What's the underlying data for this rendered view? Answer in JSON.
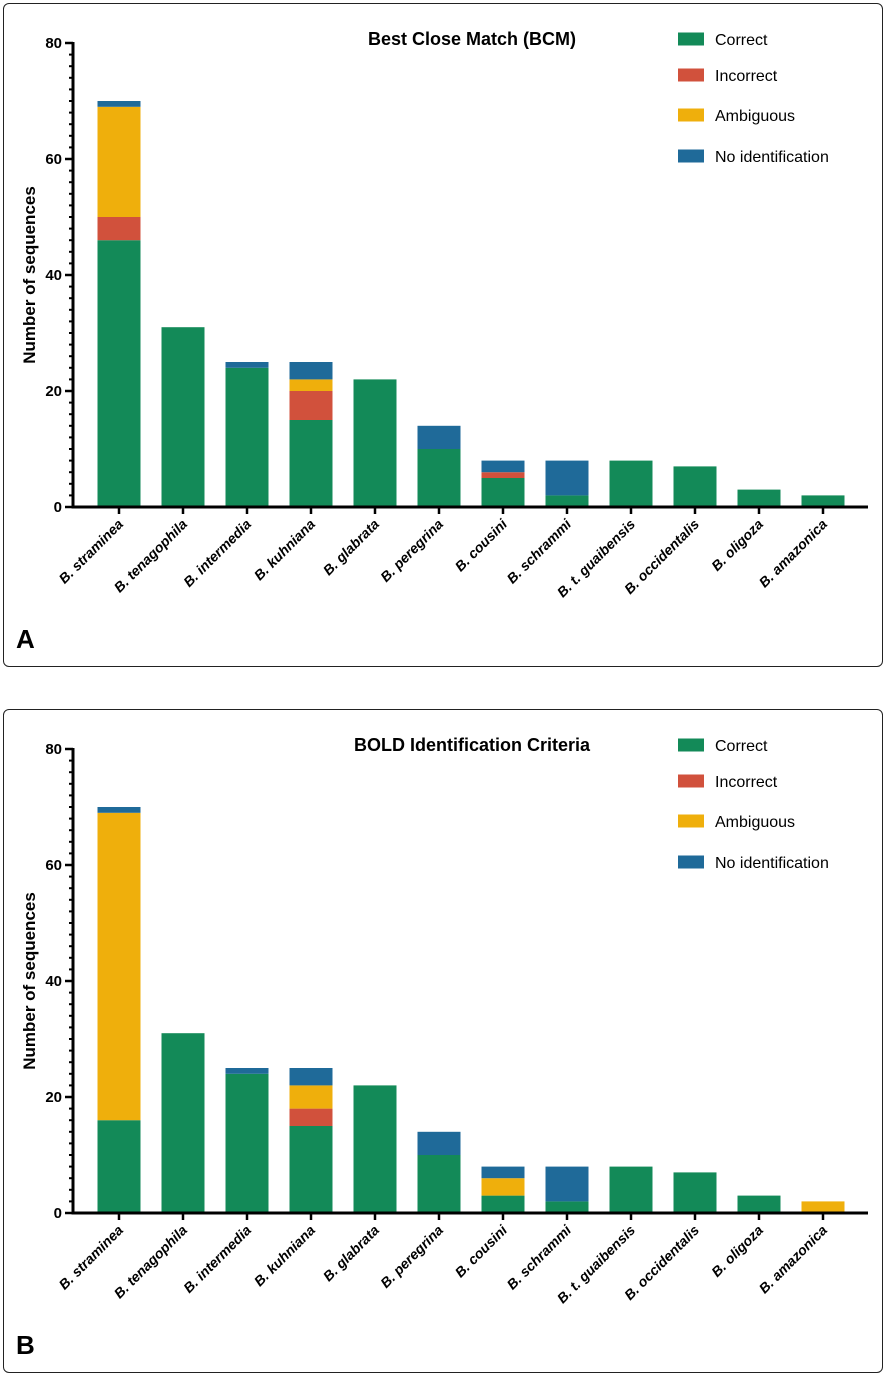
{
  "colors": {
    "correct": "#138a58",
    "incorrect": "#d1513c",
    "ambiguous": "#efaf0c",
    "no_identification": "#1f6a99"
  },
  "chart_data": [
    {
      "panel_label": "A",
      "type": "bar",
      "stacked": true,
      "title": "Best Close Match (BCM)",
      "xlabel": "",
      "ylabel": "Number of sequences",
      "ylim": [
        0,
        80
      ],
      "yticks": [
        0,
        20,
        40,
        60,
        80
      ],
      "legend_position": "top-right",
      "categories": [
        "B. straminea",
        "B. tenagophila",
        "B. intermedia",
        "B. kuhniana",
        "B. glabrata",
        "B. peregrina",
        "B. cousini",
        "B. schrammi",
        "B. t. guaibensis",
        "B. occidentalis",
        "B. oligoza",
        "B. amazonica"
      ],
      "series": [
        {
          "name": "Correct",
          "key": "correct",
          "values": [
            46,
            31,
            24,
            15,
            22,
            10,
            5,
            2,
            8,
            7,
            3,
            2
          ]
        },
        {
          "name": "Incorrect",
          "key": "incorrect",
          "values": [
            4,
            0,
            0,
            5,
            0,
            0,
            1,
            0,
            0,
            0,
            0,
            0
          ]
        },
        {
          "name": "Ambiguous",
          "key": "ambiguous",
          "values": [
            19,
            0,
            0,
            2,
            0,
            0,
            0,
            0,
            0,
            0,
            0,
            0
          ]
        },
        {
          "name": "No identification",
          "key": "no_identification",
          "values": [
            1,
            0,
            1,
            3,
            0,
            4,
            2,
            6,
            0,
            0,
            0,
            0
          ]
        }
      ]
    },
    {
      "panel_label": "B",
      "type": "bar",
      "stacked": true,
      "title": "BOLD Identification Criteria",
      "xlabel": "",
      "ylabel": "Number of sequences",
      "ylim": [
        0,
        80
      ],
      "yticks": [
        0,
        20,
        40,
        60,
        80
      ],
      "legend_position": "top-right",
      "categories": [
        "B. straminea",
        "B. tenagophila",
        "B. intermedia",
        "B. kuhniana",
        "B. glabrata",
        "B. peregrina",
        "B. cousini",
        "B. schrammi",
        "B. t. guaibensis",
        "B. occidentalis",
        "B. oligoza",
        "B. amazonica"
      ],
      "series": [
        {
          "name": "Correct",
          "key": "correct",
          "values": [
            16,
            31,
            24,
            15,
            22,
            10,
            3,
            2,
            8,
            7,
            3,
            0
          ]
        },
        {
          "name": "Incorrect",
          "key": "incorrect",
          "values": [
            0,
            0,
            0,
            3,
            0,
            0,
            0,
            0,
            0,
            0,
            0,
            0
          ]
        },
        {
          "name": "Ambiguous",
          "key": "ambiguous",
          "values": [
            53,
            0,
            0,
            4,
            0,
            0,
            3,
            0,
            0,
            0,
            0,
            2
          ]
        },
        {
          "name": "No identification",
          "key": "no_identification",
          "values": [
            1,
            0,
            1,
            3,
            0,
            4,
            2,
            6,
            0,
            0,
            0,
            0
          ]
        }
      ]
    }
  ]
}
